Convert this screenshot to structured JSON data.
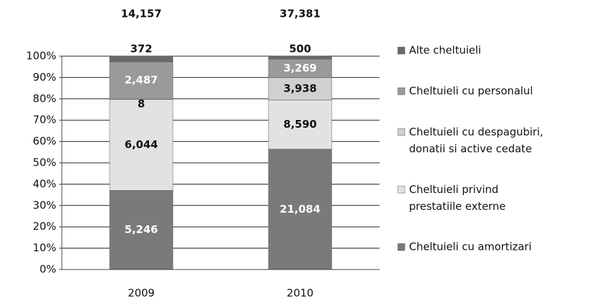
{
  "chart_data": {
    "type": "stacked_bar_100",
    "categories": [
      "2009",
      "2010"
    ],
    "totals": [
      14157,
      37381
    ],
    "total_labels": [
      "14,157",
      "37,381"
    ],
    "series": [
      {
        "name": "Cheltuieli cu amortizari",
        "color": "#7a7a7a",
        "values": [
          5246,
          21084
        ],
        "value_labels": [
          "5,246",
          "21,084"
        ]
      },
      {
        "name": "Cheltuieli privind prestatiile externe",
        "color": "#e2e2e2",
        "values": [
          6044,
          8590
        ],
        "value_labels": [
          "6,044",
          "8,590"
        ]
      },
      {
        "name": "Cheltuieli cu despagubiri, donatii si active cedate",
        "color": "#d0d0d0",
        "values": [
          8,
          3938
        ],
        "value_labels": [
          "8",
          "3,938"
        ]
      },
      {
        "name": "Cheltuieli cu personalul",
        "color": "#9a9a9a",
        "values": [
          2487,
          3269
        ],
        "value_labels": [
          "2,487",
          "3,269"
        ]
      },
      {
        "name": "Alte  cheltuieli",
        "color": "#6a6a6a",
        "values": [
          372,
          500
        ]
      }
    ],
    "ylim": [
      0,
      100
    ],
    "yticks": [
      {
        "value": 0,
        "label": "0%"
      },
      {
        "value": 10,
        "label": "10%"
      },
      {
        "value": 20,
        "label": "20%"
      },
      {
        "value": 30,
        "label": "30%"
      },
      {
        "value": 40,
        "label": "40%"
      },
      {
        "value": 50,
        "label": "50%"
      },
      {
        "value": 60,
        "label": "60%"
      },
      {
        "value": 70,
        "label": "70%"
      },
      {
        "value": 80,
        "label": "80%"
      },
      {
        "value": 90,
        "label": "90%"
      },
      {
        "value": 100,
        "label": "100%"
      }
    ],
    "grid": true
  }
}
